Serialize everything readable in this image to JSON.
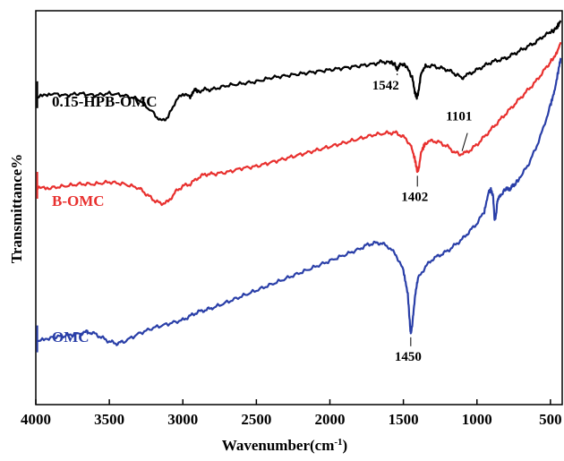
{
  "chart_data": {
    "type": "line",
    "xlabel": "Wavenumber(cm",
    "xlabel_sup": "-1",
    "xlabel_close": ")",
    "ylabel": "Transmittance%",
    "xlim": [
      4000,
      420
    ],
    "xticks": [
      4000,
      3500,
      3000,
      2500,
      2000,
      1500,
      1000,
      500
    ],
    "yticks_shown": false,
    "grid": false,
    "series": [
      {
        "name": "0.15-HPB-OMC",
        "color": "#000000",
        "points": [
          [
            3990,
            0.78
          ],
          [
            3900,
            0.79
          ],
          [
            3800,
            0.785
          ],
          [
            3700,
            0.79
          ],
          [
            3600,
            0.785
          ],
          [
            3500,
            0.79
          ],
          [
            3400,
            0.785
          ],
          [
            3300,
            0.775
          ],
          [
            3200,
            0.74
          ],
          [
            3150,
            0.72
          ],
          [
            3100,
            0.73
          ],
          [
            3050,
            0.77
          ],
          [
            3000,
            0.79
          ],
          [
            2950,
            0.78
          ],
          [
            2920,
            0.8
          ],
          [
            2900,
            0.795
          ],
          [
            2850,
            0.8
          ],
          [
            2800,
            0.8
          ],
          [
            2700,
            0.81
          ],
          [
            2600,
            0.815
          ],
          [
            2500,
            0.82
          ],
          [
            2400,
            0.83
          ],
          [
            2300,
            0.835
          ],
          [
            2200,
            0.84
          ],
          [
            2100,
            0.845
          ],
          [
            2000,
            0.85
          ],
          [
            1900,
            0.855
          ],
          [
            1800,
            0.86
          ],
          [
            1700,
            0.865
          ],
          [
            1650,
            0.87
          ],
          [
            1600,
            0.87
          ],
          [
            1560,
            0.865
          ],
          [
            1542,
            0.85
          ],
          [
            1520,
            0.865
          ],
          [
            1480,
            0.86
          ],
          [
            1440,
            0.83
          ],
          [
            1420,
            0.79
          ],
          [
            1410,
            0.78
          ],
          [
            1400,
            0.79
          ],
          [
            1380,
            0.84
          ],
          [
            1350,
            0.86
          ],
          [
            1300,
            0.86
          ],
          [
            1250,
            0.855
          ],
          [
            1200,
            0.85
          ],
          [
            1150,
            0.84
          ],
          [
            1101,
            0.83
          ],
          [
            1050,
            0.84
          ],
          [
            1000,
            0.85
          ],
          [
            950,
            0.86
          ],
          [
            900,
            0.87
          ],
          [
            850,
            0.875
          ],
          [
            800,
            0.88
          ],
          [
            750,
            0.89
          ],
          [
            700,
            0.9
          ],
          [
            650,
            0.91
          ],
          [
            600,
            0.92
          ],
          [
            550,
            0.935
          ],
          [
            500,
            0.945
          ],
          [
            460,
            0.955
          ],
          [
            430,
            0.975
          ]
        ]
      },
      {
        "name": "B-OMC",
        "color": "#e8302e",
        "points": [
          [
            3990,
            0.55
          ],
          [
            3900,
            0.55
          ],
          [
            3800,
            0.555
          ],
          [
            3700,
            0.56
          ],
          [
            3600,
            0.56
          ],
          [
            3500,
            0.565
          ],
          [
            3400,
            0.56
          ],
          [
            3300,
            0.55
          ],
          [
            3250,
            0.535
          ],
          [
            3200,
            0.52
          ],
          [
            3150,
            0.51
          ],
          [
            3100,
            0.515
          ],
          [
            3050,
            0.54
          ],
          [
            3000,
            0.555
          ],
          [
            2950,
            0.56
          ],
          [
            2900,
            0.575
          ],
          [
            2850,
            0.585
          ],
          [
            2800,
            0.585
          ],
          [
            2700,
            0.59
          ],
          [
            2600,
            0.6
          ],
          [
            2500,
            0.605
          ],
          [
            2400,
            0.615
          ],
          [
            2300,
            0.625
          ],
          [
            2200,
            0.635
          ],
          [
            2100,
            0.645
          ],
          [
            2000,
            0.655
          ],
          [
            1900,
            0.665
          ],
          [
            1800,
            0.675
          ],
          [
            1700,
            0.685
          ],
          [
            1600,
            0.69
          ],
          [
            1550,
            0.69
          ],
          [
            1500,
            0.68
          ],
          [
            1450,
            0.66
          ],
          [
            1420,
            0.62
          ],
          [
            1405,
            0.59
          ],
          [
            1395,
            0.6
          ],
          [
            1380,
            0.64
          ],
          [
            1350,
            0.665
          ],
          [
            1300,
            0.67
          ],
          [
            1250,
            0.665
          ],
          [
            1200,
            0.655
          ],
          [
            1150,
            0.64
          ],
          [
            1101,
            0.635
          ],
          [
            1050,
            0.645
          ],
          [
            1000,
            0.66
          ],
          [
            950,
            0.68
          ],
          [
            900,
            0.7
          ],
          [
            850,
            0.72
          ],
          [
            800,
            0.74
          ],
          [
            750,
            0.76
          ],
          [
            700,
            0.78
          ],
          [
            650,
            0.8
          ],
          [
            600,
            0.82
          ],
          [
            550,
            0.845
          ],
          [
            500,
            0.87
          ],
          [
            460,
            0.89
          ],
          [
            430,
            0.92
          ]
        ]
      },
      {
        "name": "OMC",
        "color": "#2a3fa8",
        "points": [
          [
            3990,
            0.16
          ],
          [
            3900,
            0.17
          ],
          [
            3800,
            0.175
          ],
          [
            3700,
            0.18
          ],
          [
            3650,
            0.185
          ],
          [
            3600,
            0.18
          ],
          [
            3550,
            0.17
          ],
          [
            3500,
            0.16
          ],
          [
            3450,
            0.155
          ],
          [
            3400,
            0.16
          ],
          [
            3300,
            0.18
          ],
          [
            3200,
            0.195
          ],
          [
            3100,
            0.205
          ],
          [
            3000,
            0.215
          ],
          [
            2950,
            0.225
          ],
          [
            2900,
            0.235
          ],
          [
            2850,
            0.24
          ],
          [
            2800,
            0.245
          ],
          [
            2700,
            0.26
          ],
          [
            2600,
            0.275
          ],
          [
            2500,
            0.29
          ],
          [
            2400,
            0.305
          ],
          [
            2300,
            0.32
          ],
          [
            2200,
            0.335
          ],
          [
            2100,
            0.35
          ],
          [
            2000,
            0.365
          ],
          [
            1900,
            0.38
          ],
          [
            1800,
            0.395
          ],
          [
            1750,
            0.405
          ],
          [
            1700,
            0.41
          ],
          [
            1650,
            0.41
          ],
          [
            1600,
            0.4
          ],
          [
            1550,
            0.38
          ],
          [
            1500,
            0.34
          ],
          [
            1470,
            0.28
          ],
          [
            1455,
            0.2
          ],
          [
            1450,
            0.18
          ],
          [
            1440,
            0.2
          ],
          [
            1420,
            0.28
          ],
          [
            1400,
            0.32
          ],
          [
            1350,
            0.35
          ],
          [
            1300,
            0.37
          ],
          [
            1250,
            0.38
          ],
          [
            1200,
            0.39
          ],
          [
            1150,
            0.405
          ],
          [
            1100,
            0.42
          ],
          [
            1050,
            0.44
          ],
          [
            1000,
            0.46
          ],
          [
            950,
            0.49
          ],
          [
            920,
            0.54
          ],
          [
            905,
            0.545
          ],
          [
            890,
            0.53
          ],
          [
            880,
            0.47
          ],
          [
            870,
            0.48
          ],
          [
            860,
            0.52
          ],
          [
            840,
            0.53
          ],
          [
            800,
            0.55
          ],
          [
            780,
            0.545
          ],
          [
            760,
            0.555
          ],
          [
            740,
            0.56
          ],
          [
            700,
            0.58
          ],
          [
            650,
            0.61
          ],
          [
            600,
            0.65
          ],
          [
            550,
            0.7
          ],
          [
            500,
            0.76
          ],
          [
            470,
            0.8
          ],
          [
            440,
            0.86
          ],
          [
            430,
            0.88
          ]
        ]
      }
    ],
    "annotations": [
      {
        "text": "1542",
        "x": 1542,
        "series": 0,
        "label_dx": -28,
        "label_dy": 22
      },
      {
        "text": "1101",
        "x": 1101,
        "series": 1,
        "label_dx": -18,
        "label_dy": -38
      },
      {
        "text": "1402",
        "x": 1405,
        "series": 1,
        "label_dx": -18,
        "label_dy": 32
      },
      {
        "text": "1450",
        "x": 1450,
        "series": 2,
        "label_dx": -18,
        "label_dy": 30
      }
    ]
  }
}
